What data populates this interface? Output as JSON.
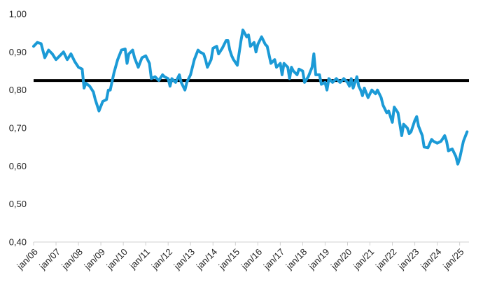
{
  "chart_data": {
    "type": "line",
    "title": "",
    "xlabel": "",
    "ylabel": "",
    "ylim": [
      0.4,
      1.0
    ],
    "grid": false,
    "y_ticks": [
      {
        "value": 0.4,
        "label": "0,40"
      },
      {
        "value": 0.5,
        "label": "0,50"
      },
      {
        "value": 0.6,
        "label": "0,60"
      },
      {
        "value": 0.7,
        "label": "0,70"
      },
      {
        "value": 0.8,
        "label": "0,80"
      },
      {
        "value": 0.9,
        "label": "0,90"
      },
      {
        "value": 1.0,
        "label": "1,00"
      }
    ],
    "x_ticks": [
      {
        "value": "2006-01",
        "label": "jan/06"
      },
      {
        "value": "2007-01",
        "label": "jan/07"
      },
      {
        "value": "2008-01",
        "label": "jan/08"
      },
      {
        "value": "2009-01",
        "label": "jan/09"
      },
      {
        "value": "2010-01",
        "label": "jan/10"
      },
      {
        "value": "2011-01",
        "label": "jan/11"
      },
      {
        "value": "2012-01",
        "label": "jan/12"
      },
      {
        "value": "2013-01",
        "label": "jan/13"
      },
      {
        "value": "2014-01",
        "label": "jan/14"
      },
      {
        "value": "2015-01",
        "label": "jan/15"
      },
      {
        "value": "2016-01",
        "label": "jan/16"
      },
      {
        "value": "2017-01",
        "label": "jan/17"
      },
      {
        "value": "2018-01",
        "label": "jan/18"
      },
      {
        "value": "2019-01",
        "label": "jan/19"
      },
      {
        "value": "2020-01",
        "label": "jan/20"
      },
      {
        "value": "2021-01",
        "label": "jan/21"
      },
      {
        "value": "2022-01",
        "label": "jan/22"
      },
      {
        "value": "2023-01",
        "label": "jan/23"
      },
      {
        "value": "2024-01",
        "label": "jan/24"
      },
      {
        "value": "2025-01",
        "label": "jan/25"
      }
    ],
    "x_range": [
      "2006-01",
      "2025-06"
    ],
    "series": [
      {
        "color": "#1b9ad6",
        "points": [
          [
            "2006-01",
            0.915
          ],
          [
            "2006-03",
            0.925
          ],
          [
            "2006-05",
            0.922
          ],
          [
            "2006-07",
            0.885
          ],
          [
            "2006-09",
            0.905
          ],
          [
            "2006-11",
            0.895
          ],
          [
            "2007-01",
            0.88
          ],
          [
            "2007-03",
            0.89
          ],
          [
            "2007-05",
            0.9
          ],
          [
            "2007-07",
            0.88
          ],
          [
            "2007-09",
            0.895
          ],
          [
            "2007-11",
            0.875
          ],
          [
            "2008-01",
            0.86
          ],
          [
            "2008-03",
            0.855
          ],
          [
            "2008-04",
            0.805
          ],
          [
            "2008-05",
            0.818
          ],
          [
            "2008-07",
            0.81
          ],
          [
            "2008-09",
            0.795
          ],
          [
            "2008-10",
            0.775
          ],
          [
            "2008-12",
            0.745
          ],
          [
            "2009-02",
            0.77
          ],
          [
            "2009-04",
            0.775
          ],
          [
            "2009-05",
            0.8
          ],
          [
            "2009-06",
            0.8
          ],
          [
            "2009-08",
            0.845
          ],
          [
            "2009-10",
            0.88
          ],
          [
            "2009-12",
            0.905
          ],
          [
            "2010-02",
            0.908
          ],
          [
            "2010-03",
            0.87
          ],
          [
            "2010-04",
            0.895
          ],
          [
            "2010-06",
            0.905
          ],
          [
            "2010-07",
            0.885
          ],
          [
            "2010-09",
            0.86
          ],
          [
            "2010-11",
            0.885
          ],
          [
            "2011-01",
            0.89
          ],
          [
            "2011-03",
            0.87
          ],
          [
            "2011-04",
            0.83
          ],
          [
            "2011-06",
            0.835
          ],
          [
            "2011-08",
            0.825
          ],
          [
            "2011-10",
            0.84
          ],
          [
            "2011-11",
            0.835
          ],
          [
            "2012-01",
            0.83
          ],
          [
            "2012-02",
            0.81
          ],
          [
            "2012-03",
            0.83
          ],
          [
            "2012-05",
            0.82
          ],
          [
            "2012-07",
            0.84
          ],
          [
            "2012-08",
            0.82
          ],
          [
            "2012-10",
            0.8
          ],
          [
            "2012-11",
            0.82
          ],
          [
            "2013-01",
            0.84
          ],
          [
            "2013-03",
            0.88
          ],
          [
            "2013-05",
            0.905
          ],
          [
            "2013-06",
            0.9
          ],
          [
            "2013-08",
            0.895
          ],
          [
            "2013-09",
            0.88
          ],
          [
            "2013-10",
            0.86
          ],
          [
            "2013-12",
            0.88
          ],
          [
            "2014-01",
            0.91
          ],
          [
            "2014-03",
            0.915
          ],
          [
            "2014-04",
            0.895
          ],
          [
            "2014-06",
            0.91
          ],
          [
            "2014-08",
            0.93
          ],
          [
            "2014-09",
            0.93
          ],
          [
            "2014-10",
            0.905
          ],
          [
            "2014-11",
            0.89
          ],
          [
            "2014-12",
            0.88
          ],
          [
            "2015-02",
            0.865
          ],
          [
            "2015-04",
            0.93
          ],
          [
            "2015-05",
            0.958
          ],
          [
            "2015-07",
            0.94
          ],
          [
            "2015-08",
            0.945
          ],
          [
            "2015-09",
            0.915
          ],
          [
            "2015-11",
            0.925
          ],
          [
            "2015-12",
            0.9
          ],
          [
            "2016-01",
            0.92
          ],
          [
            "2016-03",
            0.94
          ],
          [
            "2016-05",
            0.92
          ],
          [
            "2016-06",
            0.915
          ],
          [
            "2016-08",
            0.87
          ],
          [
            "2016-10",
            0.88
          ],
          [
            "2016-11",
            0.86
          ],
          [
            "2017-01",
            0.87
          ],
          [
            "2017-02",
            0.84
          ],
          [
            "2017-03",
            0.87
          ],
          [
            "2017-05",
            0.86
          ],
          [
            "2017-06",
            0.83
          ],
          [
            "2017-07",
            0.86
          ],
          [
            "2017-08",
            0.85
          ],
          [
            "2017-10",
            0.84
          ],
          [
            "2017-11",
            0.855
          ],
          [
            "2018-01",
            0.85
          ],
          [
            "2018-02",
            0.82
          ],
          [
            "2018-04",
            0.835
          ],
          [
            "2018-06",
            0.86
          ],
          [
            "2018-07",
            0.895
          ],
          [
            "2018-08",
            0.84
          ],
          [
            "2018-10",
            0.84
          ],
          [
            "2018-11",
            0.815
          ],
          [
            "2019-01",
            0.82
          ],
          [
            "2019-02",
            0.8
          ],
          [
            "2019-03",
            0.83
          ],
          [
            "2019-05",
            0.82
          ],
          [
            "2019-06",
            0.825
          ],
          [
            "2019-07",
            0.83
          ],
          [
            "2019-09",
            0.82
          ],
          [
            "2019-11",
            0.83
          ],
          [
            "2020-01",
            0.82
          ],
          [
            "2020-02",
            0.81
          ],
          [
            "2020-03",
            0.83
          ],
          [
            "2020-04",
            0.805
          ],
          [
            "2020-06",
            0.835
          ],
          [
            "2020-07",
            0.81
          ],
          [
            "2020-08",
            0.8
          ],
          [
            "2020-09",
            0.785
          ],
          [
            "2020-10",
            0.805
          ],
          [
            "2020-12",
            0.78
          ],
          [
            "2021-01",
            0.79
          ],
          [
            "2021-02",
            0.8
          ],
          [
            "2021-04",
            0.79
          ],
          [
            "2021-05",
            0.8
          ],
          [
            "2021-07",
            0.78
          ],
          [
            "2021-08",
            0.76
          ],
          [
            "2021-10",
            0.74
          ],
          [
            "2021-11",
            0.745
          ],
          [
            "2022-01",
            0.715
          ],
          [
            "2022-02",
            0.755
          ],
          [
            "2022-04",
            0.74
          ],
          [
            "2022-06",
            0.68
          ],
          [
            "2022-07",
            0.71
          ],
          [
            "2022-09",
            0.7
          ],
          [
            "2022-10",
            0.685
          ],
          [
            "2022-11",
            0.69
          ],
          [
            "2023-01",
            0.72
          ],
          [
            "2023-02",
            0.73
          ],
          [
            "2023-03",
            0.705
          ],
          [
            "2023-05",
            0.68
          ],
          [
            "2023-06",
            0.65
          ],
          [
            "2023-08",
            0.648
          ],
          [
            "2023-10",
            0.67
          ],
          [
            "2023-11",
            0.665
          ],
          [
            "2024-01",
            0.66
          ],
          [
            "2024-03",
            0.665
          ],
          [
            "2024-05",
            0.68
          ],
          [
            "2024-06",
            0.665
          ],
          [
            "2024-07",
            0.64
          ],
          [
            "2024-09",
            0.645
          ],
          [
            "2024-11",
            0.625
          ],
          [
            "2024-12",
            0.605
          ],
          [
            "2025-01",
            0.62
          ],
          [
            "2025-03",
            0.665
          ],
          [
            "2025-05",
            0.69
          ]
        ]
      }
    ],
    "reference_line": {
      "value": 0.825,
      "color": "#000000"
    }
  }
}
